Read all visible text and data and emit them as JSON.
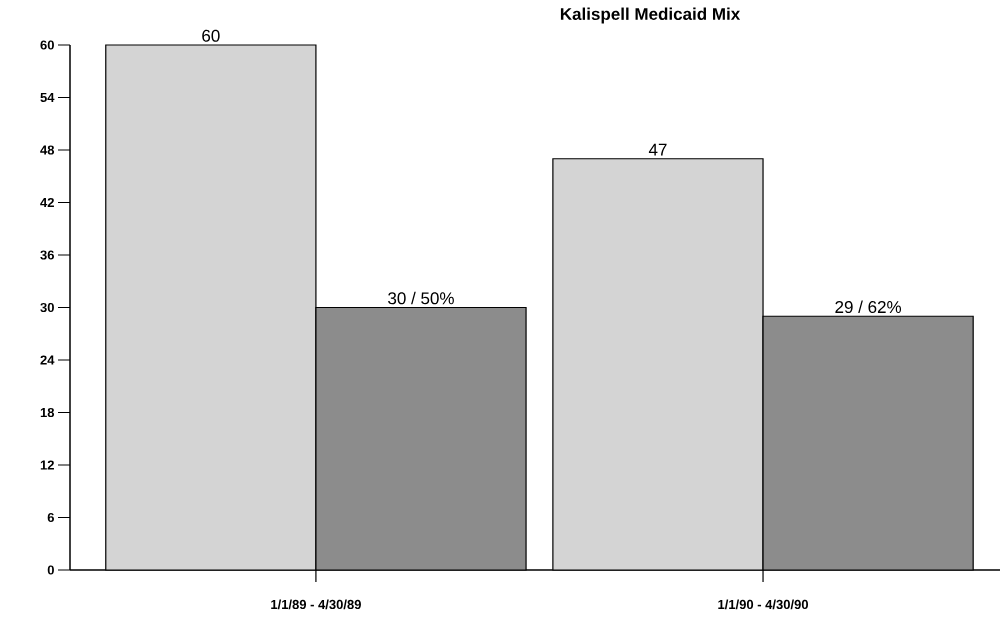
{
  "chart_data": {
    "type": "bar",
    "title": "Kalispell Medicaid Mix",
    "categories": [
      "1/1/89 - 4/30/89",
      "1/1/90 - 4/30/90"
    ],
    "series": [
      {
        "color": "#d4d4d4",
        "values": [
          60,
          47
        ],
        "value_labels": [
          "60",
          "47"
        ]
      },
      {
        "color": "#8c8c8c",
        "values": [
          30,
          29
        ],
        "value_labels": [
          "30 / 50%",
          "29 / 62%"
        ]
      }
    ],
    "ylim": [
      0,
      60
    ],
    "yticks": [
      0,
      6,
      12,
      18,
      24,
      30,
      36,
      42,
      48,
      54,
      60
    ],
    "grid": false
  }
}
